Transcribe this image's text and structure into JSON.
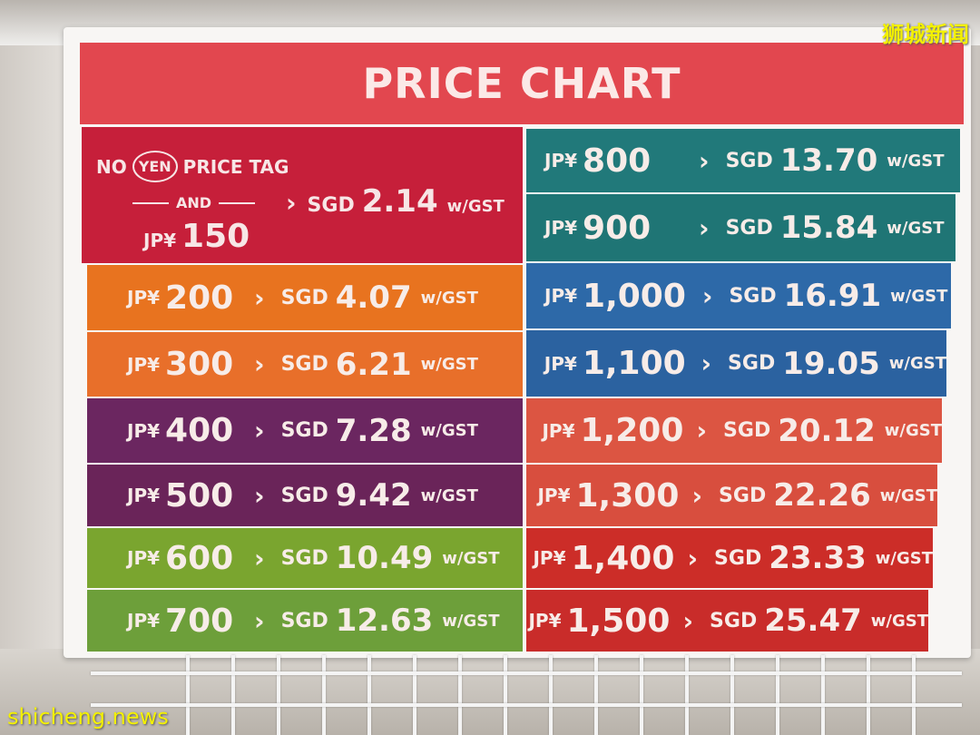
{
  "sign": {
    "title": "PRICE CHART",
    "first_cell": {
      "line1_no": "NO",
      "line1_yen": "YEN",
      "line1_rest": "PRICE TAG",
      "and": "AND",
      "jp_label": "JP¥",
      "jp_value": "150",
      "arrow": "›",
      "sgd_label": "SGD",
      "sgd_value": "2.14",
      "gst": "w/GST",
      "color": "#c61f3a"
    },
    "left_rows": [
      {
        "jpy": "200",
        "sgd": "4.07",
        "color": "#e8731f"
      },
      {
        "jpy": "300",
        "sgd": "6.21",
        "color": "#e86f2a"
      },
      {
        "jpy": "400",
        "sgd": "7.28",
        "color": "#6b2660"
      },
      {
        "jpy": "500",
        "sgd": "9.42",
        "color": "#6a2459"
      },
      {
        "jpy": "600",
        "sgd": "10.49",
        "color": "#7aa52f"
      },
      {
        "jpy": "700",
        "sgd": "12.63",
        "color": "#6d9f3a"
      }
    ],
    "right_rows": [
      {
        "jpy": "800",
        "sgd": "13.70",
        "color": "#21797a"
      },
      {
        "jpy": "900",
        "sgd": "15.84",
        "color": "#1f7575"
      },
      {
        "jpy": "1,000",
        "sgd": "16.91",
        "color": "#2d69a8"
      },
      {
        "jpy": "1,100",
        "sgd": "19.05",
        "color": "#2b62a0"
      },
      {
        "jpy": "1,200",
        "sgd": "20.12",
        "color": "#dc5542"
      },
      {
        "jpy": "1,300",
        "sgd": "22.26",
        "color": "#d84e3e"
      },
      {
        "jpy": "1,400",
        "sgd": "23.33",
        "color": "#cc2d28"
      },
      {
        "jpy": "1,500",
        "sgd": "25.47",
        "color": "#c92c2a"
      }
    ],
    "jp_label": "JP¥",
    "sgd_label": "SGD",
    "gst_label": "w/GST",
    "arrow": "›"
  },
  "watermarks": {
    "top_right": "狮城新闻",
    "bottom_left": "shicheng.news"
  }
}
